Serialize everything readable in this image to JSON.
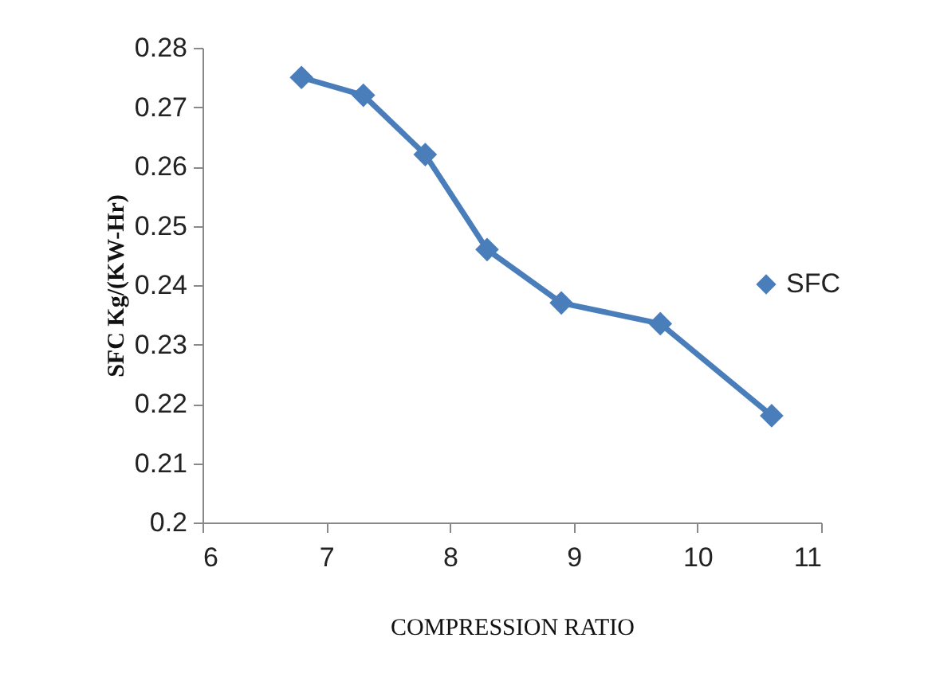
{
  "chart_data": {
    "type": "line",
    "xlabel": "COMPRESSION RATIO",
    "ylabel": "SFC    Kg/(KW-Hr)",
    "x": [
      6.8,
      7.3,
      7.8,
      8.3,
      8.9,
      9.7,
      10.6
    ],
    "series": [
      {
        "name": "SFC",
        "color": "#4a7ebb",
        "values": [
          0.275,
          0.272,
          0.262,
          0.246,
          0.237,
          0.2335,
          0.218
        ]
      }
    ],
    "xlim": [
      6,
      11
    ],
    "xticks": [
      6,
      7,
      8,
      9,
      10,
      11
    ],
    "ylim": [
      0.2,
      0.28
    ],
    "yticks": [
      0.2,
      0.21,
      0.22,
      0.23,
      0.24,
      0.25,
      0.26,
      0.27,
      0.28
    ],
    "grid": false,
    "legend": "right",
    "marker": "diamond",
    "line_style": "solid"
  }
}
